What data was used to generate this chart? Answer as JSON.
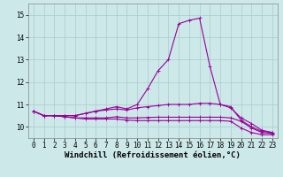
{
  "xlabel": "Windchill (Refroidissement éolien,°C)",
  "ylabel": "",
  "background_color": "#cce8e8",
  "grid_color": "#aacccc",
  "line_color": "#990099",
  "xlim": [
    -0.5,
    23.5
  ],
  "ylim": [
    9.5,
    15.5
  ],
  "yticks": [
    10,
    11,
    12,
    13,
    14,
    15
  ],
  "xticks": [
    0,
    1,
    2,
    3,
    4,
    5,
    6,
    7,
    8,
    9,
    10,
    11,
    12,
    13,
    14,
    15,
    16,
    17,
    18,
    19,
    20,
    21,
    22,
    23
  ],
  "series": [
    [
      10.7,
      10.5,
      10.5,
      10.5,
      10.5,
      10.6,
      10.7,
      10.8,
      10.9,
      10.8,
      11.0,
      11.7,
      12.5,
      13.0,
      14.6,
      14.75,
      14.85,
      12.7,
      11.0,
      10.9,
      10.3,
      10.0,
      9.8,
      9.75
    ],
    [
      10.7,
      10.5,
      10.5,
      10.5,
      10.5,
      10.6,
      10.7,
      10.75,
      10.8,
      10.75,
      10.85,
      10.9,
      10.95,
      11.0,
      11.0,
      11.0,
      11.05,
      11.05,
      11.0,
      10.85,
      10.4,
      10.15,
      9.85,
      9.75
    ],
    [
      10.7,
      10.5,
      10.5,
      10.45,
      10.4,
      10.4,
      10.4,
      10.4,
      10.45,
      10.4,
      10.4,
      10.42,
      10.43,
      10.43,
      10.43,
      10.43,
      10.43,
      10.43,
      10.43,
      10.4,
      10.25,
      9.95,
      9.75,
      9.7
    ],
    [
      10.7,
      10.5,
      10.5,
      10.45,
      10.4,
      10.35,
      10.35,
      10.35,
      10.35,
      10.3,
      10.28,
      10.28,
      10.28,
      10.28,
      10.28,
      10.28,
      10.28,
      10.28,
      10.28,
      10.25,
      9.95,
      9.75,
      9.65,
      9.65
    ]
  ],
  "marker": "+",
  "markersize": 3,
  "linewidth": 0.8,
  "tick_fontsize": 5.5,
  "label_fontsize": 6.5
}
